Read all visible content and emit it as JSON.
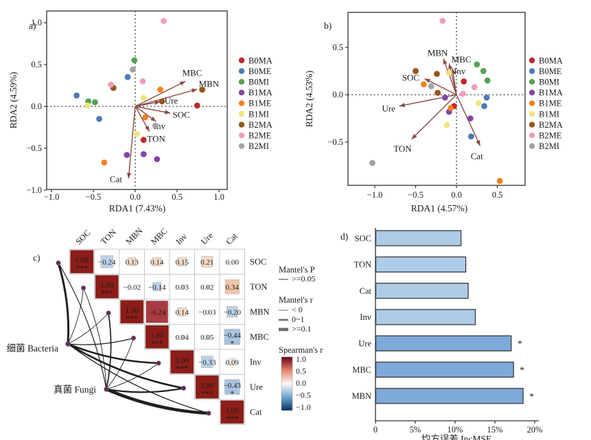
{
  "figure": {
    "background": "#ffffff"
  },
  "arrow_color": "#8a4a45",
  "groups": [
    {
      "name": "B0MA",
      "color": "#c0272b"
    },
    {
      "name": "B0ME",
      "color": "#4a7ab5"
    },
    {
      "name": "B0MI",
      "color": "#53a353"
    },
    {
      "name": "B1MA",
      "color": "#8344a5"
    },
    {
      "name": "B1ME",
      "color": "#f58220"
    },
    {
      "name": "B1MI",
      "color": "#efe57c"
    },
    {
      "name": "B2MA",
      "color": "#96551b"
    },
    {
      "name": "B2ME",
      "color": "#f19cbb"
    },
    {
      "name": "B2MI",
      "color": "#a3a3a3"
    }
  ],
  "chart_data": [
    {
      "id": "a",
      "type": "scatter",
      "title": "a)",
      "xlabel": "RDA1 (7.43%)",
      "ylabel": "RDA2 (4.59%)",
      "xlim": [
        -1.05,
        1.1
      ],
      "ylim": [
        -1.0,
        1.15
      ],
      "xticks": [
        -1.0,
        -0.5,
        0.0,
        0.5,
        1.0
      ],
      "yticks": [
        -1.0,
        -0.5,
        0.0,
        0.5,
        1.0
      ],
      "arrows": [
        {
          "label": "MBC",
          "x": 0.6,
          "y": 0.3,
          "lx": 0.68,
          "ly": 0.4
        },
        {
          "label": "MBN",
          "x": 0.74,
          "y": 0.205,
          "lx": 0.88,
          "ly": 0.27
        },
        {
          "label": "Ure",
          "x": 0.3,
          "y": 0.057,
          "lx": 0.43,
          "ly": 0.07
        },
        {
          "label": "SOC",
          "x": 0.42,
          "y": -0.08,
          "lx": 0.55,
          "ly": -0.1
        },
        {
          "label": "Inv",
          "x": 0.25,
          "y": -0.18,
          "lx": 0.29,
          "ly": -0.235
        },
        {
          "label": "TON",
          "x": 0.17,
          "y": -0.3,
          "lx": 0.25,
          "ly": -0.385
        },
        {
          "label": "Cat",
          "x": -0.08,
          "y": -0.86,
          "lx": -0.23,
          "ly": -0.87
        }
      ],
      "series": [
        {
          "name": "B0MA",
          "color": "#c0272b",
          "points": [
            [
              0.74,
              0.01
            ],
            [
              0.1,
              -0.4
            ]
          ]
        },
        {
          "name": "B0ME",
          "color": "#4a7ab5",
          "points": [
            [
              -0.7,
              0.13
            ],
            [
              -0.09,
              0.35
            ],
            [
              -0.43,
              -0.15
            ]
          ]
        },
        {
          "name": "B0MI",
          "color": "#53a353",
          "points": [
            [
              -0.01,
              0.55
            ],
            [
              -0.56,
              0.06
            ],
            [
              -0.48,
              0.05
            ]
          ]
        },
        {
          "name": "B1MA",
          "color": "#8344a5",
          "points": [
            [
              0.1,
              -0.57
            ],
            [
              0.26,
              -0.63
            ],
            [
              -0.1,
              -0.58
            ]
          ]
        },
        {
          "name": "B1ME",
          "color": "#f58220",
          "points": [
            [
              0.3,
              0.2
            ],
            [
              0.12,
              -0.13
            ],
            [
              -0.37,
              -0.67
            ]
          ]
        },
        {
          "name": "B1MI",
          "color": "#efe57c",
          "points": [
            [
              0.1,
              0.1
            ],
            [
              -0.57,
              0.01
            ],
            [
              0.02,
              -0.33
            ]
          ]
        },
        {
          "name": "B2MA",
          "color": "#96551b",
          "points": [
            [
              -0.26,
              0.22
            ],
            [
              0.8,
              0.2
            ],
            [
              0.32,
              0.06
            ]
          ]
        },
        {
          "name": "B2ME",
          "color": "#f19cbb",
          "points": [
            [
              0.34,
              1.02
            ],
            [
              0.09,
              0.3
            ],
            [
              -0.29,
              0.26
            ]
          ]
        },
        {
          "name": "B2MI",
          "color": "#a3a3a3",
          "points": [
            [
              -0.03,
              0.44
            ],
            [
              0.24,
              -0.23
            ]
          ]
        }
      ]
    },
    {
      "id": "b",
      "type": "scatter",
      "title": "b)",
      "xlabel": "RDA1 (4.57%)",
      "ylabel": "RDA2 (4.53%)",
      "xlim": [
        -1.33,
        0.84
      ],
      "ylim": [
        -0.96,
        0.87
      ],
      "xticks": [
        -1.0,
        -0.5,
        0.0,
        0.5
      ],
      "yticks": [
        -0.5,
        0.0,
        0.5
      ],
      "arrows": [
        {
          "label": "MBN",
          "x": -0.16,
          "y": 0.38,
          "lx": -0.23,
          "ly": 0.44
        },
        {
          "label": "MBC",
          "x": -0.09,
          "y": 0.33,
          "lx": 0.06,
          "ly": 0.37
        },
        {
          "label": "Inv",
          "x": -0.05,
          "y": 0.28,
          "lx": 0.04,
          "ly": 0.25
        },
        {
          "label": "SOC",
          "x": -0.39,
          "y": 0.17,
          "lx": -0.56,
          "ly": 0.18
        },
        {
          "label": "Ure",
          "x": -0.7,
          "y": -0.12,
          "lx": -0.83,
          "ly": -0.145
        },
        {
          "label": "TON",
          "x": -0.55,
          "y": -0.47,
          "lx": -0.66,
          "ly": -0.57
        },
        {
          "label": "Cat",
          "x": 0.29,
          "y": -0.54,
          "lx": 0.25,
          "ly": -0.65
        }
      ],
      "series": [
        {
          "name": "B0MA",
          "color": "#c0272b",
          "points": [
            [
              0.09,
              0.14
            ],
            [
              -0.03,
              -0.12
            ]
          ]
        },
        {
          "name": "B0ME",
          "color": "#4a7ab5",
          "points": [
            [
              0.37,
              -0.03
            ],
            [
              0.34,
              -0.12
            ],
            [
              0.18,
              -0.44
            ]
          ]
        },
        {
          "name": "B0MI",
          "color": "#53a353",
          "points": [
            [
              0.25,
              0.32
            ],
            [
              0.33,
              0.25
            ],
            [
              0.38,
              0.15
            ]
          ]
        },
        {
          "name": "B1MA",
          "color": "#8344a5",
          "points": [
            [
              -0.14,
              -0.03
            ],
            [
              -0.09,
              -0.18
            ],
            [
              0.17,
              -0.25
            ]
          ]
        },
        {
          "name": "B1ME",
          "color": "#f58220",
          "points": [
            [
              -0.4,
              0.11
            ],
            [
              -0.07,
              -0.14
            ],
            [
              0.53,
              -0.91
            ]
          ]
        },
        {
          "name": "B1MI",
          "color": "#efe57c",
          "points": [
            [
              -0.09,
              0.23
            ],
            [
              0.27,
              -0.09
            ],
            [
              -0.12,
              -0.32
            ]
          ]
        },
        {
          "name": "B2MA",
          "color": "#96551b",
          "points": [
            [
              -0.5,
              0.25
            ],
            [
              -0.24,
              0.22
            ],
            [
              -0.23,
              0.02
            ]
          ]
        },
        {
          "name": "B2ME",
          "color": "#f19cbb",
          "points": [
            [
              -0.17,
              0.78
            ],
            [
              0.22,
              0.08
            ],
            [
              0.08,
              0.01
            ]
          ]
        },
        {
          "name": "B2MI",
          "color": "#a3a3a3",
          "points": [
            [
              -0.31,
              0.09
            ],
            [
              -1.03,
              -0.72
            ]
          ]
        }
      ]
    },
    {
      "id": "c",
      "type": "heatmap",
      "title": "c)",
      "vars": [
        "SOC",
        "TON",
        "MBN",
        "MBC",
        "Inv",
        "Ure",
        "Cat"
      ],
      "palette": {
        "diag": "#8c1d18",
        "special": "#a93a42",
        "peach": "#f6d9c4",
        "peach2": "#f2c5a6",
        "faintp": "#fbeee3",
        "blue": "#bcd2e8",
        "blue2": "#a6c4e0",
        "faintb": "#eaf0f6"
      },
      "cells": [
        {
          "r": 0,
          "c": 0,
          "v": "1.00",
          "sig": "***",
          "f": "diag",
          "s": 1
        },
        {
          "r": 0,
          "c": 1,
          "v": "−0.24",
          "f": "blue",
          "s": 0.52
        },
        {
          "r": 0,
          "c": 2,
          "v": "0.13",
          "f": "peach",
          "s": 0.34
        },
        {
          "r": 0,
          "c": 3,
          "v": "0.14",
          "f": "peach",
          "s": 0.36
        },
        {
          "r": 0,
          "c": 4,
          "v": "0.15",
          "f": "peach",
          "s": 0.37
        },
        {
          "r": 0,
          "c": 5,
          "v": "0.21",
          "f": "peach",
          "s": 0.46
        },
        {
          "r": 0,
          "c": 6,
          "v": "0.00",
          "s": 0
        },
        {
          "r": 1,
          "c": 1,
          "v": "1.00",
          "sig": "***",
          "f": "diag",
          "s": 1
        },
        {
          "r": 1,
          "c": 2,
          "v": "−0.02",
          "s": 0
        },
        {
          "r": 1,
          "c": 3,
          "v": "−0.14",
          "f": "blue",
          "s": 0.36
        },
        {
          "r": 1,
          "c": 4,
          "v": "0.03",
          "f": "faintp",
          "s": 0.14
        },
        {
          "r": 1,
          "c": 5,
          "v": "0.02",
          "f": "faintp",
          "s": 0.12
        },
        {
          "r": 1,
          "c": 6,
          "v": "0.34",
          "f": "peach2",
          "s": 0.6
        },
        {
          "r": 2,
          "c": 2,
          "v": "1.00",
          "sig": "***",
          "f": "diag",
          "s": 1
        },
        {
          "r": 2,
          "c": 3,
          "v": "−0.24",
          "f": "special",
          "s": 0.95
        },
        {
          "r": 2,
          "c": 4,
          "v": "0.14",
          "f": "peach",
          "s": 0.36
        },
        {
          "r": 2,
          "c": 5,
          "v": "−0.03",
          "f": "faintb",
          "s": 0.12
        },
        {
          "r": 2,
          "c": 6,
          "v": "−0.20",
          "f": "blue",
          "s": 0.46
        },
        {
          "r": 3,
          "c": 3,
          "v": "1.00",
          "sig": "***",
          "f": "diag",
          "s": 1
        },
        {
          "r": 3,
          "c": 4,
          "v": "0.04",
          "f": "faintp",
          "s": 0.14
        },
        {
          "r": 3,
          "c": 5,
          "v": "0.05",
          "f": "faintp",
          "s": 0.15
        },
        {
          "r": 3,
          "c": 6,
          "v": "−0.44",
          "sig": "*",
          "f": "blue2",
          "s": 0.66
        },
        {
          "r": 4,
          "c": 4,
          "v": "1.00",
          "sig": "***",
          "f": "diag",
          "s": 1
        },
        {
          "r": 4,
          "c": 5,
          "v": "−0.33",
          "f": "blue",
          "s": 0.5
        },
        {
          "r": 4,
          "c": 6,
          "v": "0.09",
          "f": "faintp",
          "s": 0.28
        },
        {
          "r": 5,
          "c": 5,
          "v": "1.00",
          "sig": "***",
          "f": "diag",
          "s": 1
        },
        {
          "r": 5,
          "c": 6,
          "v": "−0.43",
          "sig": "*",
          "f": "blue2",
          "s": 0.64
        },
        {
          "r": 6,
          "c": 6,
          "v": "1.00",
          "sig": "***",
          "f": "diag",
          "s": 1
        }
      ],
      "nodes": [
        {
          "id": "bacteria",
          "label": "细菌 Bacteria"
        },
        {
          "id": "fungi",
          "label": "真菌 Fungi"
        }
      ],
      "edges": [
        {
          "from": "bacteria",
          "to": "SOC",
          "w": 3
        },
        {
          "from": "bacteria",
          "to": "TON",
          "w": 0.9
        },
        {
          "from": "bacteria",
          "to": "MBN",
          "w": 0.9
        },
        {
          "from": "bacteria",
          "to": "MBC",
          "w": 1.3
        },
        {
          "from": "bacteria",
          "to": "Inv",
          "w": 2.6
        },
        {
          "from": "bacteria",
          "to": "Ure",
          "w": 2.6
        },
        {
          "from": "bacteria",
          "to": "Cat",
          "w": 1.3
        },
        {
          "from": "fungi",
          "to": "SOC",
          "w": 1.2
        },
        {
          "from": "fungi",
          "to": "TON",
          "w": 0.9
        },
        {
          "from": "fungi",
          "to": "MBN",
          "w": 1.7
        },
        {
          "from": "fungi",
          "to": "MBC",
          "w": 0.9
        },
        {
          "from": "fungi",
          "to": "Inv",
          "w": 0.9
        },
        {
          "from": "fungi",
          "to": "Ure",
          "w": 2.2
        },
        {
          "from": "fungi",
          "to": "Cat",
          "w": 4.5
        }
      ],
      "legends": {
        "mantel_p": {
          "title": "Mantel's P",
          "items": [
            {
              "label": ">=0.05",
              "w": 1.4
            }
          ]
        },
        "mantel_r": {
          "title": "Mantel's r",
          "items": [
            {
              "label": "< 0",
              "w": 1
            },
            {
              "label": "0~1",
              "w": 2.6
            },
            {
              "label": ">=0.1",
              "w": 4.6
            }
          ]
        },
        "spearman": {
          "title": "Spearman's r",
          "ticks": [
            "1.0",
            "0.5",
            "0.0",
            "−0.5",
            "−1.0"
          ],
          "gradient": [
            "#67001f",
            "#e58368",
            "#f9f9f9",
            "#6fa7cf",
            "#053061"
          ]
        }
      }
    },
    {
      "id": "d",
      "type": "bar",
      "title": "d)",
      "categories": [
        "SOC",
        "TON",
        "Cat",
        "Inv",
        "Ure",
        "MBC",
        "MBN"
      ],
      "values": [
        10.7,
        11.3,
        11.6,
        12.5,
        17.0,
        17.3,
        18.5
      ],
      "sig": [
        "",
        "",
        "",
        "",
        "*",
        "*",
        "*"
      ],
      "xticks": [
        {
          "v": 0,
          "label": "0"
        },
        {
          "v": 5,
          "label": "5%"
        },
        {
          "v": 10,
          "label": "10%"
        },
        {
          "v": 15,
          "label": "15%"
        },
        {
          "v": 20,
          "label": "20%"
        }
      ],
      "xlabel": "均方误差 IncMSE",
      "xlim": [
        0,
        20
      ],
      "bar_color": "#aecbe8",
      "bar_color_sig": "#7ea9d8",
      "bar_border": "#3a3a3a"
    }
  ]
}
